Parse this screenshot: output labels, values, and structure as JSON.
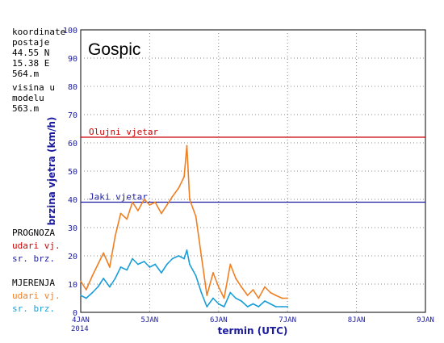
{
  "station": {
    "coord_label_1": "koordinate",
    "coord_label_2": "postaje",
    "lat": "44.55 N",
    "lon": "15.38 E",
    "elev": "564.m",
    "model_label_1": "visina u",
    "model_label_2": "modelu",
    "model_elev": "563.m"
  },
  "legend": {
    "forecast_title": "PROGNOZA",
    "forecast_gust": "udari vj.",
    "forecast_mean": "sr. brz.",
    "measured_title": "MJERENJA",
    "measured_gust": "udari vj.",
    "measured_mean": "sr. brz."
  },
  "chart_data": {
    "type": "line",
    "title": "Gospic",
    "xlabel": "termin (UTC)",
    "ylabel": "brzina vjetra (km/h)",
    "ylim": [
      0,
      100
    ],
    "yticks": [
      "0",
      "10",
      "20",
      "30",
      "40",
      "50",
      "60",
      "70",
      "80",
      "90",
      "100"
    ],
    "xticks": [
      "4JAN",
      "5JAN",
      "6JAN",
      "7JAN",
      "8JAN",
      "9JAN"
    ],
    "xtick_year": "2014",
    "grid": true,
    "colors": {
      "gust": "#f07f22",
      "mean": "#1a9ed8",
      "storm_line": "#cc0000",
      "strong_line": "#1a1aa0"
    },
    "reference_lines": [
      {
        "label": "Olujni vjetar",
        "value": 62
      },
      {
        "label": "Jaki vjetar",
        "value": 39
      }
    ],
    "series": [
      {
        "name": "udari vj.",
        "x": [
          0.0,
          0.08,
          0.17,
          0.25,
          0.33,
          0.42,
          0.5,
          0.58,
          0.67,
          0.75,
          0.83,
          0.92,
          1.0,
          1.08,
          1.17,
          1.25,
          1.33,
          1.42,
          1.5,
          1.54,
          1.58,
          1.67,
          1.75,
          1.83,
          1.92,
          2.0,
          2.08,
          2.17,
          2.25,
          2.33,
          2.42,
          2.5,
          2.58,
          2.67,
          2.75,
          2.83,
          2.92,
          3.0
        ],
        "values": [
          11,
          8,
          13,
          17,
          21,
          16,
          27,
          35,
          33,
          39,
          36,
          40,
          38,
          39,
          35,
          38,
          41,
          44,
          48,
          59,
          40,
          34,
          20,
          6,
          14,
          9,
          5,
          17,
          12,
          9,
          6,
          8,
          5,
          9,
          7,
          6,
          5,
          5
        ]
      },
      {
        "name": "sr. brz.",
        "x": [
          0.0,
          0.08,
          0.17,
          0.25,
          0.33,
          0.42,
          0.5,
          0.58,
          0.67,
          0.75,
          0.83,
          0.92,
          1.0,
          1.08,
          1.17,
          1.25,
          1.33,
          1.42,
          1.5,
          1.54,
          1.58,
          1.67,
          1.75,
          1.83,
          1.92,
          2.0,
          2.08,
          2.17,
          2.25,
          2.33,
          2.42,
          2.5,
          2.58,
          2.67,
          2.75,
          2.83,
          2.92,
          3.0
        ],
        "values": [
          6,
          5,
          7,
          9,
          12,
          9,
          12,
          16,
          15,
          19,
          17,
          18,
          16,
          17,
          14,
          17,
          19,
          20,
          19,
          22,
          17,
          13,
          7,
          2,
          5,
          3,
          2,
          7,
          5,
          4,
          2,
          3,
          2,
          4,
          3,
          2,
          2,
          2
        ]
      }
    ]
  }
}
